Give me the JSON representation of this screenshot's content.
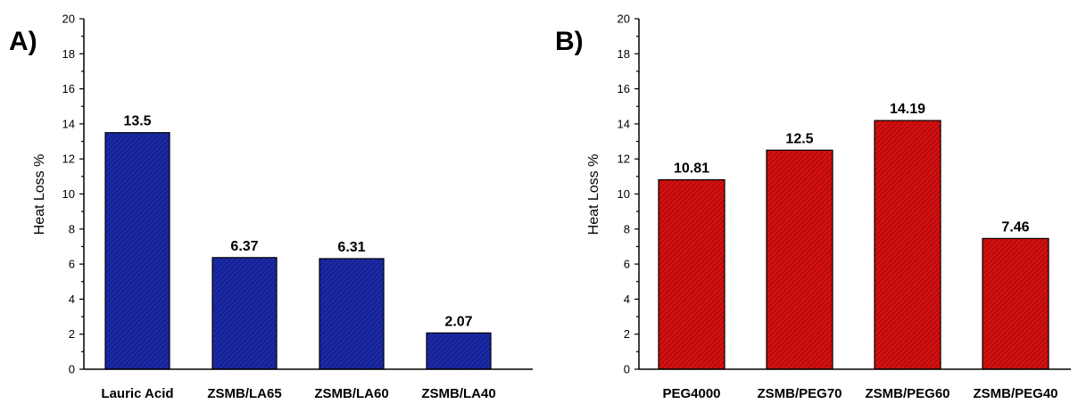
{
  "colors": {
    "panel_a_bar": "#1c2aa8",
    "panel_b_bar": "#d41010"
  },
  "chart_data": [
    {
      "type": "bar",
      "panel_label": "A)",
      "categories": [
        "Lauric Acid",
        "ZSMB/LA65",
        "ZSMB/LA60",
        "ZSMB/LA40"
      ],
      "values": [
        13.5,
        6.37,
        6.31,
        2.07
      ],
      "value_labels": [
        "13.5",
        "6.37",
        "6.31",
        "2.07"
      ],
      "ylabel": "Heat Loss %",
      "xlabel": "",
      "ylim": [
        0,
        20
      ],
      "yticks": [
        0,
        2,
        4,
        6,
        8,
        10,
        12,
        14,
        16,
        18,
        20
      ],
      "grid": false,
      "color": "#1c2aa8"
    },
    {
      "type": "bar",
      "panel_label": "B)",
      "categories": [
        "PEG4000",
        "ZSMB/PEG70",
        "ZSMB/PEG60",
        "ZSMB/PEG40"
      ],
      "values": [
        10.81,
        12.5,
        14.19,
        7.46
      ],
      "value_labels": [
        "10.81",
        "12.5",
        "14.19",
        "7.46"
      ],
      "ylabel": "Heat Loss %",
      "xlabel": "",
      "ylim": [
        0,
        20
      ],
      "yticks": [
        0,
        2,
        4,
        6,
        8,
        10,
        12,
        14,
        16,
        18,
        20
      ],
      "grid": false,
      "color": "#d41010"
    }
  ]
}
